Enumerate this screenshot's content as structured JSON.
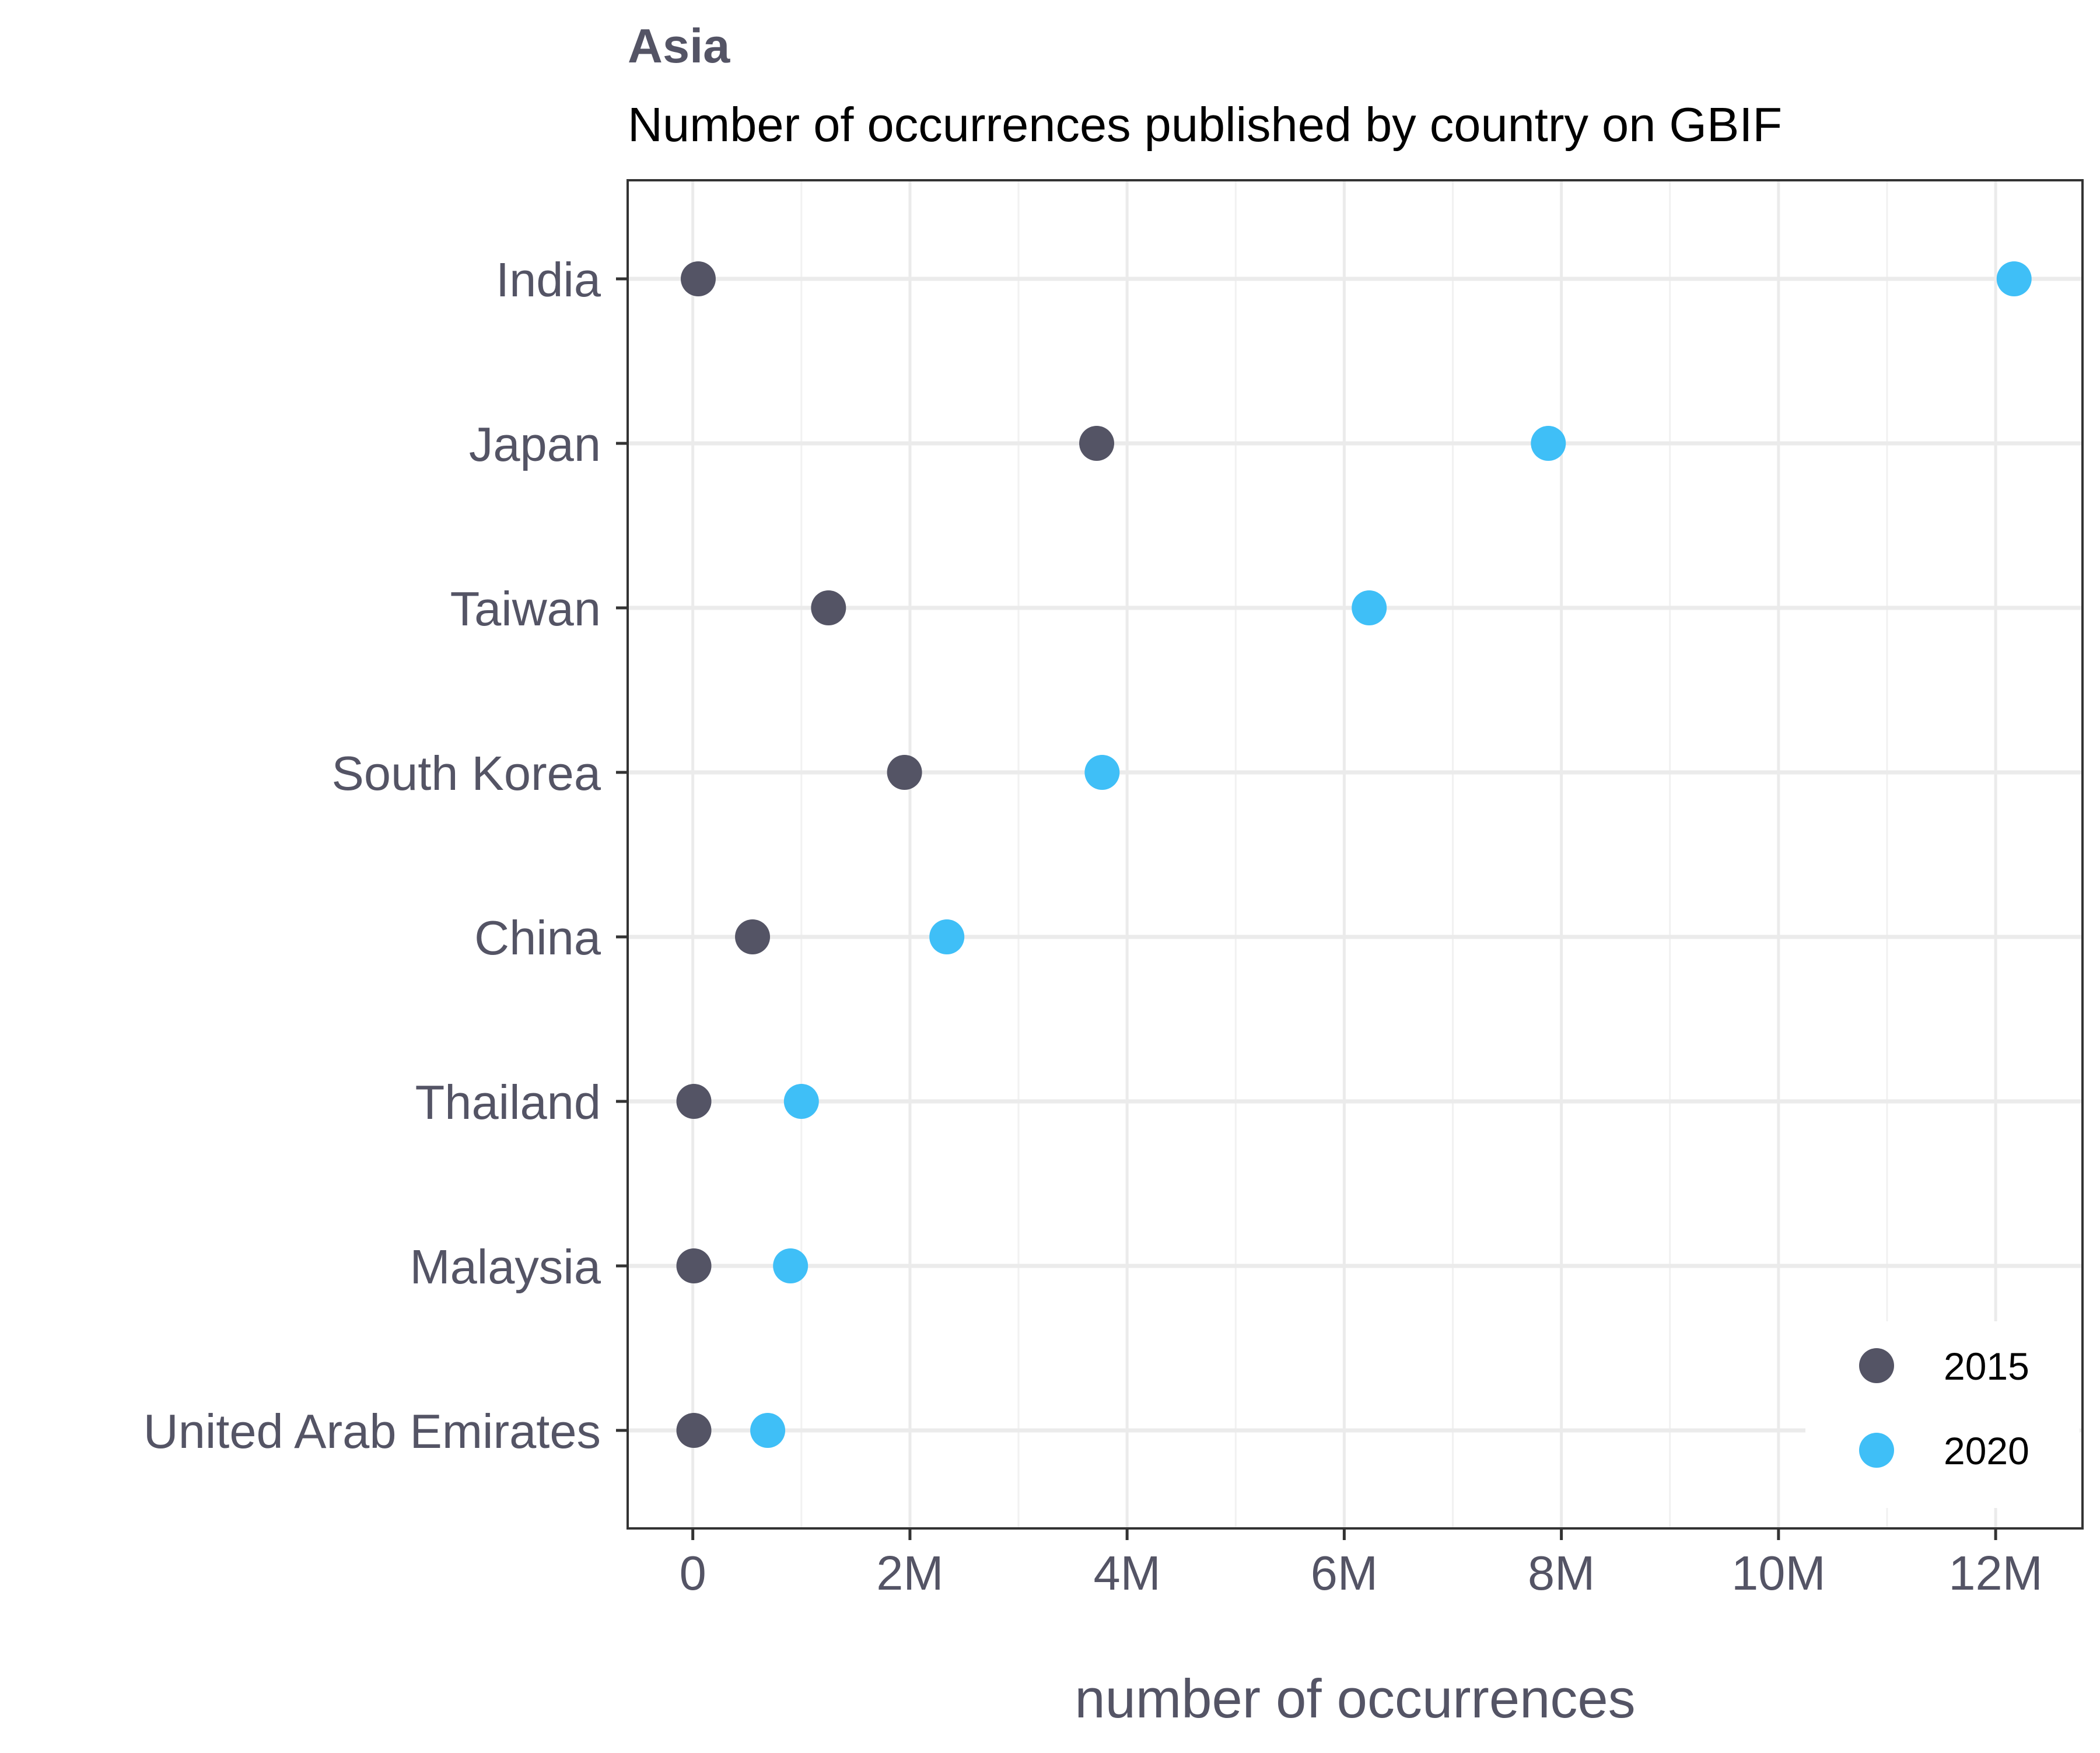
{
  "chart_data": {
    "type": "scatter",
    "title": "Asia",
    "subtitle": "Number of occurrences published by country on GBIF",
    "xlabel": "number of occurrences",
    "ylabel": "",
    "xlim": [
      -600000,
      12800000
    ],
    "x_ticks": [
      0,
      2000000,
      4000000,
      6000000,
      8000000,
      10000000,
      12000000
    ],
    "x_tick_labels": [
      "0",
      "2M",
      "4M",
      "6M",
      "8M",
      "10M",
      "12M"
    ],
    "categories": [
      "India",
      "Japan",
      "Taiwan",
      "South Korea",
      "China",
      "Thailand",
      "Malaysia",
      "United Arab Emirates"
    ],
    "series": [
      {
        "name": "2015",
        "color": "#545465",
        "values": [
          50000,
          3720000,
          1250000,
          1950000,
          550000,
          10000,
          10000,
          10000
        ]
      },
      {
        "name": "2020",
        "color": "#3FBFF7",
        "values": [
          12170000,
          7880000,
          6230000,
          3770000,
          2340000,
          1000000,
          900000,
          690000
        ]
      }
    ],
    "grid": true,
    "legend_position": "bottom-right"
  }
}
